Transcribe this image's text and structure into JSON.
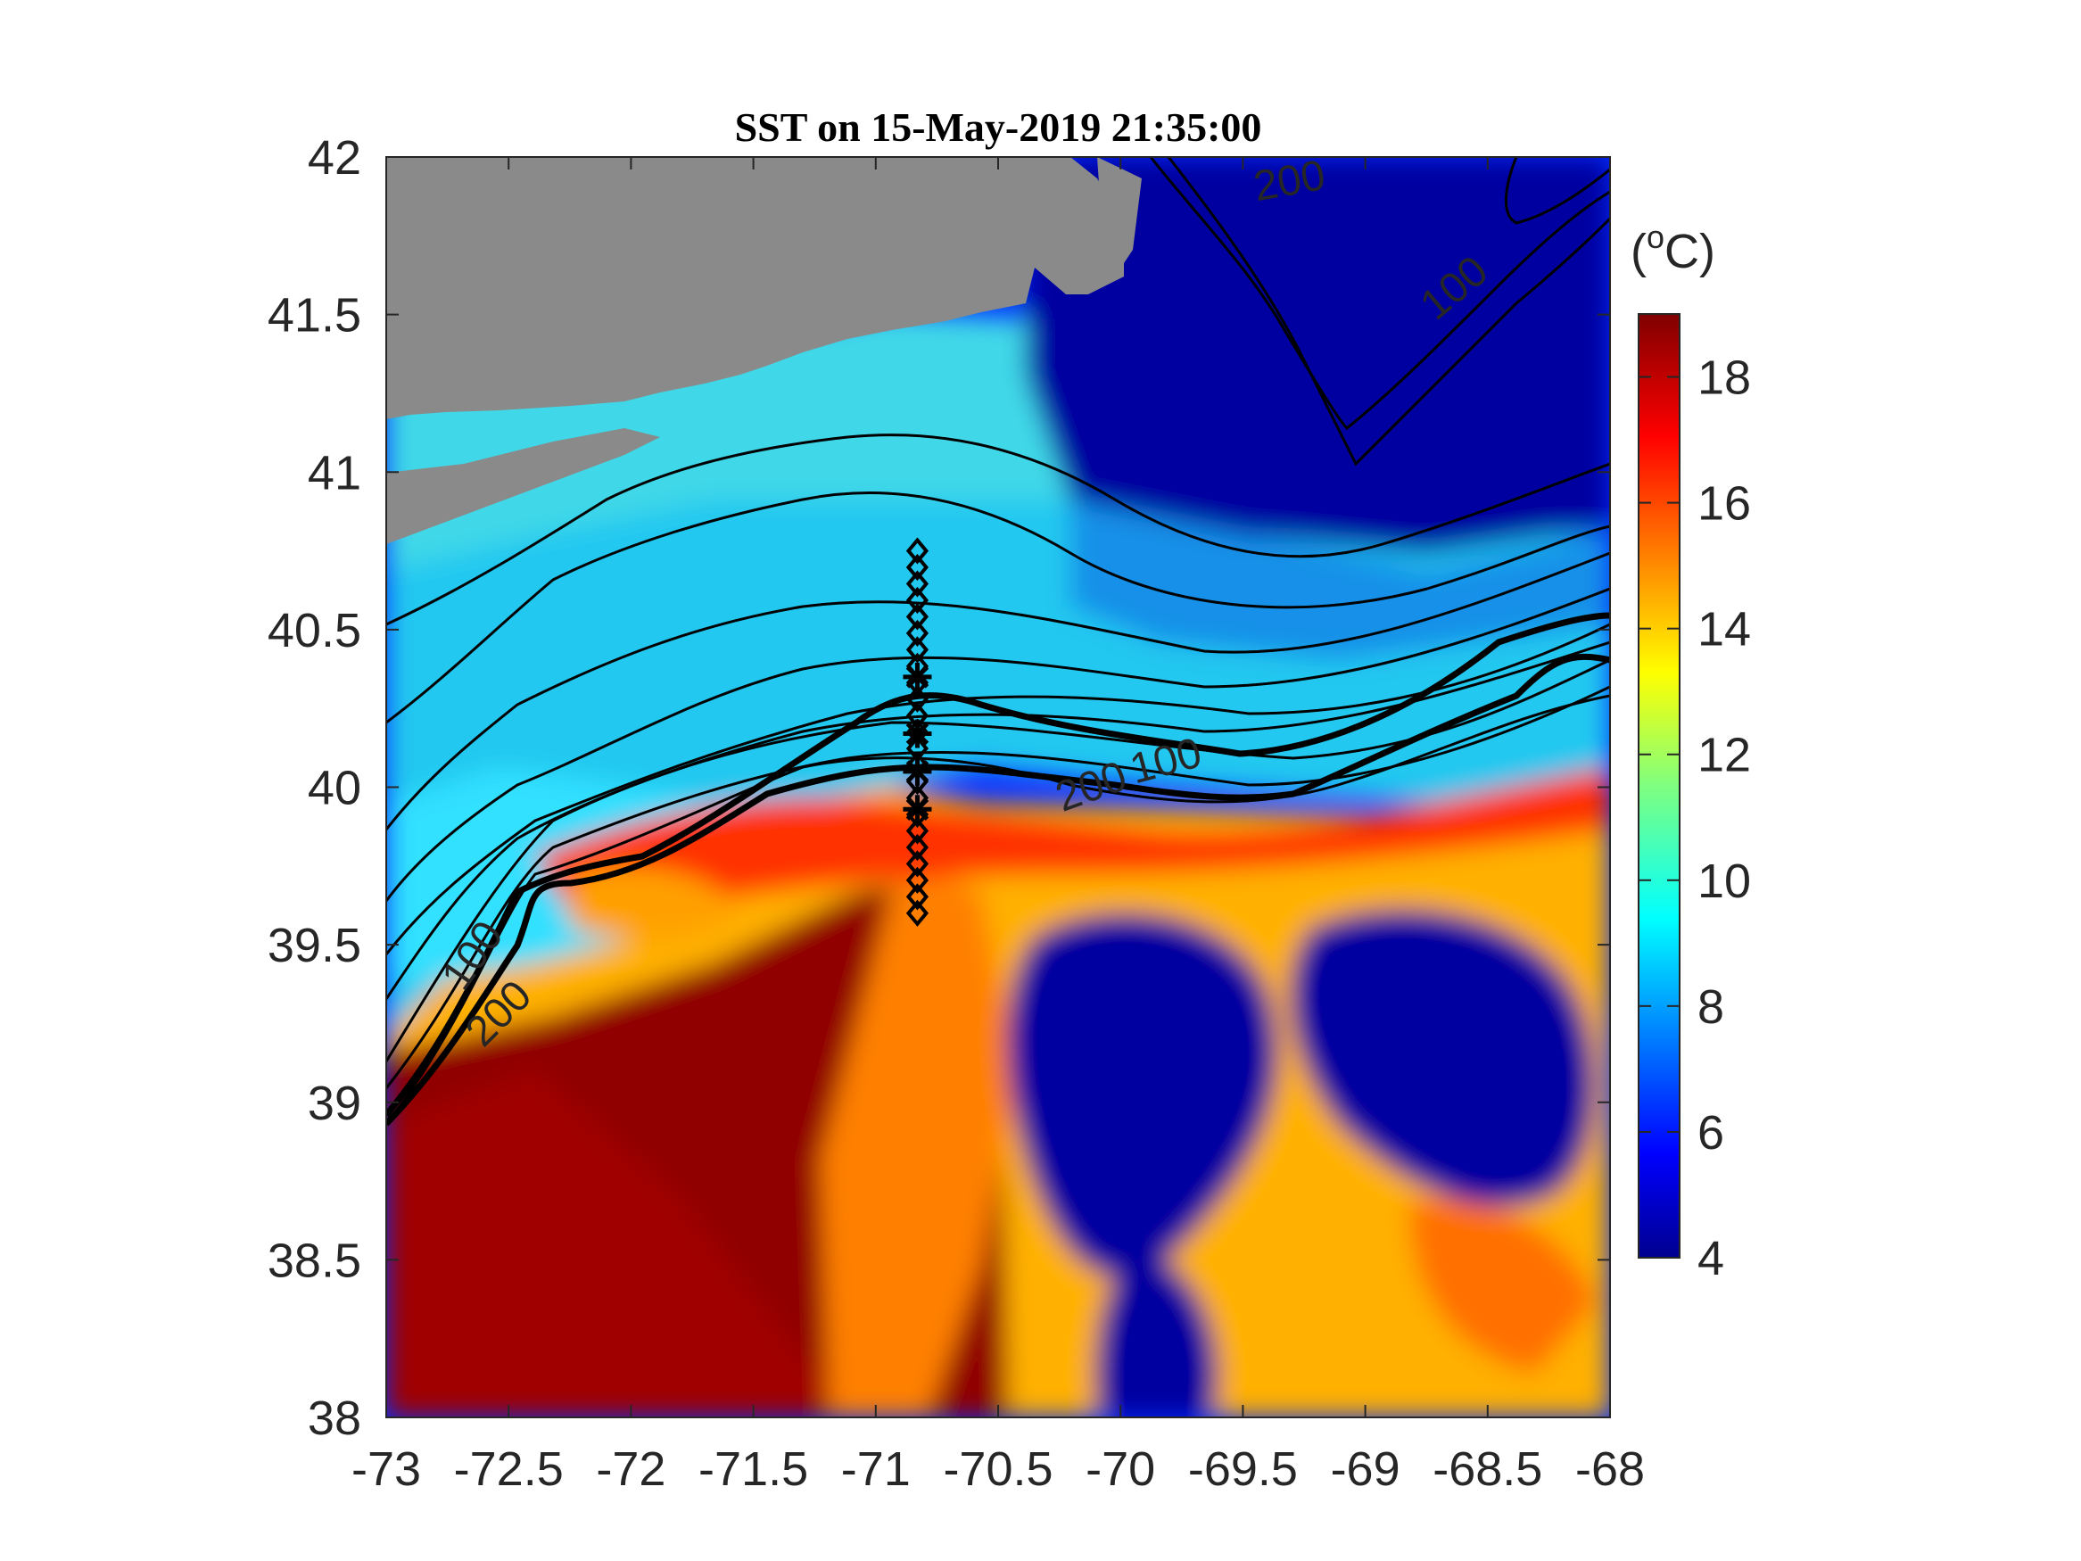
{
  "chart_data": {
    "type": "heatmap",
    "title": "SST on 15-May-2019 21:35:00",
    "xlabel": "",
    "ylabel": "",
    "xlim": [
      -73,
      -68
    ],
    "ylim": [
      38,
      42
    ],
    "x_ticks": [
      "-73",
      "-72.5",
      "-72",
      "-71.5",
      "-71",
      "-70.5",
      "-70",
      "-69.5",
      "-69",
      "-68.5",
      "-68"
    ],
    "y_ticks": [
      "38",
      "38.5",
      "39",
      "39.5",
      "40",
      "40.5",
      "41",
      "41.5",
      "42"
    ],
    "colorbar": {
      "label_prefix": "(",
      "label_sup": "o",
      "label_suffix": "C)",
      "range": [
        4,
        19
      ],
      "ticks": [
        "4",
        "6",
        "8",
        "10",
        "12",
        "14",
        "16",
        "18"
      ],
      "colormap": "jet"
    },
    "contour_labels": [
      {
        "text": "200",
        "lon": -69.3,
        "lat": 41.88
      },
      {
        "text": "100",
        "lon": -68.6,
        "lat": 41.55
      },
      {
        "text": "100",
        "lon": -69.8,
        "lat": 40.04
      },
      {
        "text": "200",
        "lon": -70.1,
        "lat": 39.96
      },
      {
        "text": "100",
        "lon": -72.6,
        "lat": 39.44
      },
      {
        "text": "200",
        "lon": -72.5,
        "lat": 39.25
      }
    ],
    "transect": {
      "lon": -70.83,
      "lat_start": 39.6,
      "lat_end": 40.75
    },
    "land_color": "#8a8a8a"
  }
}
